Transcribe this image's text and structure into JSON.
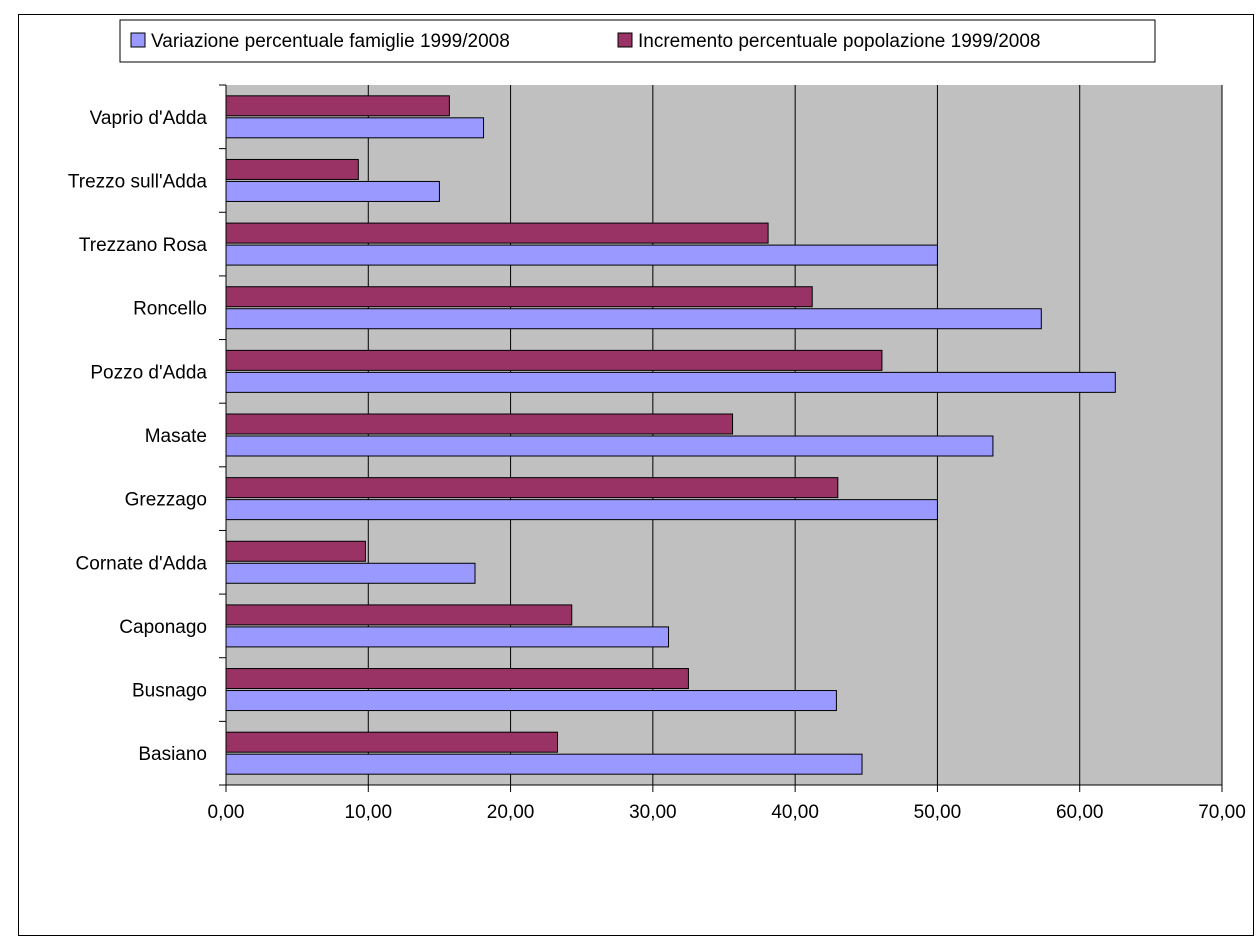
{
  "chart_data": {
    "type": "bar",
    "orientation": "horizontal",
    "title": "",
    "xlabel": "",
    "ylabel": "",
    "categories": [
      "Basiano",
      "Busnago",
      "Caponago",
      "Cornate d'Adda",
      "Grezzago",
      "Masate",
      "Pozzo d'Adda",
      "Roncello",
      "Trezzano Rosa",
      "Trezzo sull'Adda",
      "Vaprio d'Adda"
    ],
    "series": [
      {
        "name": "Variazione percentuale famiglie 1999/2008",
        "color": "#9999ff",
        "values": [
          44.7,
          42.9,
          31.1,
          17.5,
          50.0,
          53.9,
          62.5,
          57.3,
          50.0,
          15.0,
          18.1
        ]
      },
      {
        "name": "Incremento percentuale popolazione 1999/2008",
        "color": "#993366",
        "values": [
          23.3,
          32.5,
          24.3,
          9.8,
          43.0,
          35.6,
          46.1,
          41.2,
          38.1,
          9.3,
          15.7
        ]
      }
    ],
    "xlim": [
      0,
      70
    ],
    "xticks": [
      "0,00",
      "10,00",
      "20,00",
      "30,00",
      "40,00",
      "50,00",
      "60,00",
      "70,00"
    ],
    "grid": true,
    "plot_background": "#c0c0c0",
    "legend_position": "top"
  }
}
